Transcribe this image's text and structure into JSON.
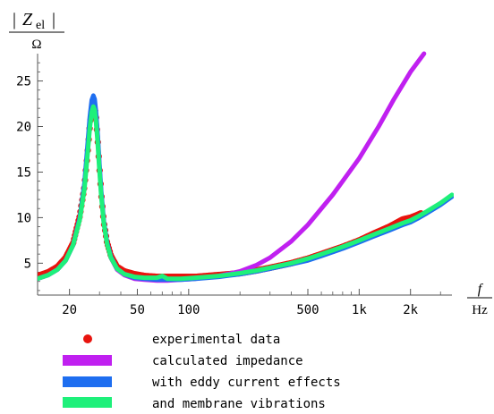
{
  "chart_data": {
    "type": "line",
    "xscale": "log",
    "xlim": [
      13,
      3500
    ],
    "ylim": [
      1.5,
      28
    ],
    "grid": false,
    "legend_position": "bottom",
    "ylabel": {
      "symbol": "Z",
      "subscript": "el",
      "unit": "Ω"
    },
    "xlabel": {
      "symbol": "f",
      "unit": "Hz"
    },
    "x_ticks": [
      {
        "value": 20,
        "label": "20"
      },
      {
        "value": 50,
        "label": "50"
      },
      {
        "value": 100,
        "label": "100"
      },
      {
        "value": 500,
        "label": "500"
      },
      {
        "value": 1000,
        "label": "1k"
      },
      {
        "value": 2000,
        "label": "2k"
      }
    ],
    "x_minor_ticks": [
      30,
      40,
      60,
      70,
      80,
      90,
      200,
      300,
      400,
      600,
      700,
      800,
      900,
      3000
    ],
    "y_ticks": [
      {
        "value": 5,
        "label": "5"
      },
      {
        "value": 10,
        "label": "10"
      },
      {
        "value": 15,
        "label": "15"
      },
      {
        "value": 20,
        "label": "20"
      },
      {
        "value": 25,
        "label": "25"
      }
    ],
    "series": [
      {
        "name": "experimental data",
        "color": "#e8140e",
        "style": "dots",
        "x": [
          13,
          15,
          17,
          19,
          21,
          23,
          24.5,
          25.5,
          26.3,
          27,
          27.6,
          28.1,
          28.6,
          29.2,
          29.9,
          30.7,
          31.8,
          33.2,
          35,
          38,
          42,
          48,
          55,
          65,
          75,
          90,
          110,
          150,
          200,
          250,
          300,
          400,
          500,
          600,
          800,
          1000,
          1200,
          1500,
          1800,
          2000,
          2200,
          2500,
          3000,
          3500
        ],
        "y": [
          3.6,
          4.0,
          4.6,
          5.6,
          7.2,
          10.2,
          13.5,
          17.0,
          20.0,
          21.8,
          22.4,
          22.1,
          21.0,
          18.8,
          15.8,
          12.6,
          9.5,
          7.3,
          5.8,
          4.6,
          4.1,
          3.8,
          3.6,
          3.5,
          3.5,
          3.5,
          3.5,
          3.7,
          3.9,
          4.2,
          4.5,
          5.0,
          5.5,
          6.0,
          6.8,
          7.5,
          8.2,
          9.0,
          9.8,
          10.0,
          10.3,
          10.8,
          11.6,
          12.4
        ]
      },
      {
        "name": "calculated impedance",
        "color": "#c020f0",
        "style": "line",
        "x": [
          13,
          15,
          17,
          19,
          21,
          23,
          24.5,
          25.5,
          26.3,
          27,
          27.6,
          28.1,
          28.6,
          29.2,
          29.9,
          30.7,
          31.8,
          33.2,
          35,
          38,
          42,
          48,
          55,
          65,
          75,
          90,
          110,
          150,
          200,
          250,
          300,
          400,
          500,
          700,
          1000,
          1300,
          1600,
          2000,
          2400
        ],
        "y": [
          3.3,
          3.7,
          4.3,
          5.3,
          7.0,
          10.0,
          13.5,
          17.2,
          20.3,
          22.2,
          22.9,
          22.6,
          21.4,
          19.1,
          16.0,
          12.7,
          9.5,
          7.2,
          5.6,
          4.3,
          3.7,
          3.3,
          3.2,
          3.1,
          3.1,
          3.2,
          3.3,
          3.6,
          4.1,
          4.8,
          5.6,
          7.4,
          9.2,
          12.5,
          16.5,
          20.0,
          23.0,
          26.0,
          28.0
        ]
      },
      {
        "name": "with eddy current effects",
        "color": "#1e6ef0",
        "style": "line",
        "x": [
          13,
          15,
          17,
          19,
          21,
          23,
          24.5,
          25.5,
          26.3,
          27,
          27.6,
          28.1,
          28.6,
          29.2,
          29.9,
          30.7,
          31.8,
          33.2,
          35,
          38,
          42,
          48,
          55,
          65,
          75,
          90,
          110,
          150,
          200,
          250,
          300,
          400,
          500,
          600,
          800,
          1000,
          1200,
          1500,
          1800,
          2000,
          2200,
          2500,
          3000,
          3500
        ],
        "y": [
          3.3,
          3.7,
          4.3,
          5.3,
          7.0,
          10.0,
          13.8,
          17.8,
          21.0,
          22.9,
          23.4,
          23.0,
          21.7,
          19.3,
          16.2,
          12.9,
          9.6,
          7.3,
          5.7,
          4.4,
          3.8,
          3.4,
          3.3,
          3.2,
          3.2,
          3.2,
          3.3,
          3.5,
          3.8,
          4.1,
          4.4,
          4.9,
          5.3,
          5.8,
          6.6,
          7.3,
          7.9,
          8.6,
          9.2,
          9.5,
          9.9,
          10.5,
          11.4,
          12.3
        ]
      },
      {
        "name": "and membrane vibrations",
        "color": "#1ef07a",
        "style": "line",
        "x": [
          13,
          15,
          17,
          19,
          21,
          23,
          24.5,
          25.5,
          26.3,
          27,
          27.6,
          28.1,
          28.6,
          29.2,
          29.9,
          30.7,
          31.8,
          33.2,
          35,
          38,
          42,
          48,
          55,
          65,
          70,
          75,
          90,
          110,
          150,
          200,
          250,
          300,
          400,
          500,
          600,
          800,
          1000,
          1200,
          1500,
          1800,
          2000,
          2200,
          2500,
          3000,
          3500
        ],
        "y": [
          3.3,
          3.7,
          4.3,
          5.3,
          7.0,
          9.8,
          13.2,
          16.8,
          19.8,
          21.6,
          22.2,
          21.8,
          20.6,
          18.4,
          15.5,
          12.4,
          9.4,
          7.1,
          5.6,
          4.4,
          3.8,
          3.5,
          3.4,
          3.4,
          3.6,
          3.3,
          3.3,
          3.4,
          3.6,
          3.9,
          4.2,
          4.5,
          5.0,
          5.5,
          6.0,
          6.8,
          7.5,
          8.1,
          8.8,
          9.4,
          9.7,
          10.1,
          10.7,
          11.6,
          12.5
        ]
      }
    ]
  }
}
